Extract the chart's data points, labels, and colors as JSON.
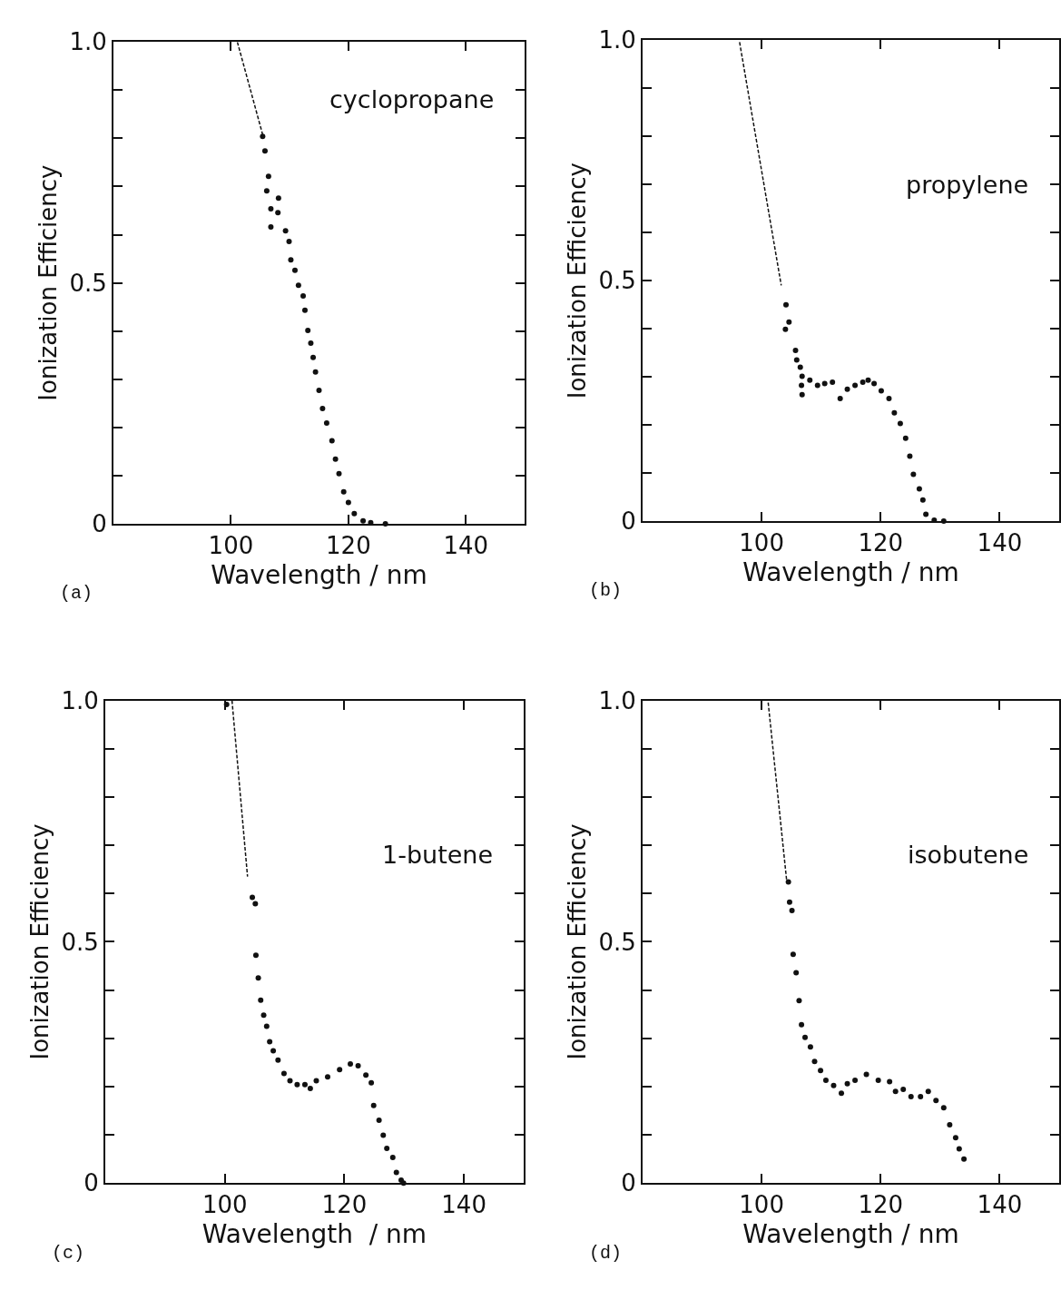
{
  "chart_data": [
    {
      "type": "scatter",
      "xlabel": "Wavelength / nm",
      "ylabel": "Ionization Efficiency",
      "annotations": [
        "cyclopropane",
        "(a)"
      ],
      "xlim": [
        80,
        150
      ],
      "xticks": [
        100,
        120,
        140
      ],
      "ylim": [
        0,
        1.0
      ],
      "yticks": [
        0,
        {
          "value": 0.1,
          "label": null
        },
        {
          "value": 0.2,
          "label": null
        },
        {
          "value": 0.3,
          "label": null
        },
        {
          "value": 0.4,
          "label": null
        },
        0.5,
        {
          "value": 0.6,
          "label": null
        },
        {
          "value": 0.7,
          "label": null
        },
        {
          "value": 0.8,
          "label": null
        },
        {
          "value": 0.9,
          "label": null
        },
        {
          "value": 1.0,
          "label": "1.0"
        }
      ],
      "series": [
        {
          "type": "line",
          "line_style": "dashed",
          "color": "#111111",
          "x": [
            101.1,
            105.4
          ],
          "values": [
            1.0,
            0.808
          ]
        },
        {
          "marker": "circle",
          "color": "#111111",
          "x": [
            105.4,
            105.8,
            106.1,
            106.4,
            106.8,
            106.8,
            108.0,
            108.1,
            109.3,
            109.9,
            110.2,
            110.9,
            111.5,
            112.3,
            112.6,
            113.1,
            113.6,
            114.0,
            114.4,
            115.0,
            115.6,
            116.3,
            117.2,
            117.8,
            118.4,
            119.2,
            120.0,
            121.0,
            122.5,
            123.8,
            126.3
          ],
          "values": [
            0.804,
            0.774,
            0.691,
            0.721,
            0.654,
            0.616,
            0.646,
            0.676,
            0.608,
            0.586,
            0.548,
            0.526,
            0.495,
            0.473,
            0.443,
            0.401,
            0.375,
            0.345,
            0.315,
            0.277,
            0.239,
            0.209,
            0.172,
            0.134,
            0.104,
            0.066,
            0.044,
            0.021,
            0.006,
            0.002,
            0.0
          ]
        }
      ]
    },
    {
      "type": "scatter",
      "xlabel": "Wavelength / nm",
      "ylabel": "Ionization Efficiency",
      "annotations": [
        "propylene",
        "(b)"
      ],
      "xlim": [
        80,
        150
      ],
      "xticks": [
        100,
        120,
        140
      ],
      "ylim": [
        0,
        1.0
      ],
      "yticks": [
        0,
        {
          "value": 0.1,
          "label": null
        },
        {
          "value": 0.2,
          "label": null
        },
        {
          "value": 0.3,
          "label": null
        },
        {
          "value": 0.4,
          "label": null
        },
        0.5,
        {
          "value": 0.6,
          "label": null
        },
        {
          "value": 0.7,
          "label": null
        },
        {
          "value": 0.8,
          "label": null
        },
        {
          "value": 0.9,
          "label": null
        },
        {
          "value": 1.0,
          "label": "1.0"
        }
      ],
      "series": [
        {
          "type": "line",
          "line_style": "dashed",
          "color": "#111111",
          "x": [
            96.3,
            103.3
          ],
          "values": [
            0.996,
            0.49
          ]
        },
        {
          "marker": "circle",
          "color": "#111111",
          "x": [
            104.0,
            104.1,
            104.6,
            105.7,
            105.9,
            106.5,
            106.7,
            106.8,
            106.8,
            108.1,
            109.4,
            110.6,
            111.9,
            113.2,
            114.4,
            115.7,
            117.0,
            117.9,
            118.9,
            120.1,
            121.4,
            122.3,
            123.3,
            124.2,
            124.9,
            125.5,
            126.5,
            127.1,
            127.6,
            129.0,
            130.6
          ],
          "values": [
            0.399,
            0.45,
            0.414,
            0.355,
            0.335,
            0.32,
            0.282,
            0.301,
            0.263,
            0.293,
            0.282,
            0.286,
            0.289,
            0.255,
            0.274,
            0.282,
            0.289,
            0.293,
            0.286,
            0.271,
            0.255,
            0.225,
            0.203,
            0.172,
            0.135,
            0.097,
            0.067,
            0.044,
            0.014,
            0.002,
            0.0
          ]
        }
      ]
    },
    {
      "type": "scatter",
      "xlabel": "Wavelength  / nm",
      "ylabel": "Ionization Efficiency",
      "annotations": [
        "1-butene",
        "(c)"
      ],
      "xlim": [
        80,
        150
      ],
      "xticks": [
        100,
        120,
        140
      ],
      "ylim": [
        0,
        1.0
      ],
      "yticks": [
        0,
        {
          "value": 0.1,
          "label": null
        },
        {
          "value": 0.2,
          "label": null
        },
        {
          "value": 0.3,
          "label": null
        },
        {
          "value": 0.4,
          "label": null
        },
        0.5,
        {
          "value": 0.6,
          "label": null
        },
        {
          "value": 0.7,
          "label": null
        },
        {
          "value": 0.8,
          "label": null
        },
        {
          "value": 0.9,
          "label": null
        },
        {
          "value": 1.0,
          "label": "1.0"
        }
      ],
      "series": [
        {
          "type": "line",
          "line_style": "dashed",
          "color": "#111111",
          "x": [
            101.2,
            103.8
          ],
          "values": [
            1.0,
            0.635
          ]
        },
        {
          "marker": "circle",
          "color": "#111111",
          "x": [
            100.3,
            104.6,
            105.1,
            105.2,
            105.6,
            106.0,
            106.5,
            107.0,
            107.5,
            108.1,
            108.9,
            109.9,
            110.9,
            112.1,
            113.4,
            114.3,
            115.3,
            117.2,
            119.2,
            121.0,
            122.3,
            123.6,
            124.5,
            124.9,
            125.8,
            126.5,
            127.1,
            128.1,
            128.7,
            129.5,
            129.9
          ],
          "values": [
            0.992,
            0.592,
            0.579,
            0.472,
            0.425,
            0.379,
            0.348,
            0.325,
            0.293,
            0.274,
            0.255,
            0.227,
            0.212,
            0.204,
            0.204,
            0.196,
            0.212,
            0.22,
            0.235,
            0.247,
            0.243,
            0.224,
            0.208,
            0.161,
            0.13,
            0.099,
            0.072,
            0.053,
            0.022,
            0.006,
            0.0
          ]
        }
      ]
    },
    {
      "type": "scatter",
      "xlabel": "Wavelength / nm",
      "ylabel": "Ionization Efficiency",
      "annotations": [
        "isobutene",
        "(d)"
      ],
      "xlim": [
        80,
        150
      ],
      "xticks": [
        100,
        120,
        140
      ],
      "ylim": [
        0,
        1.0
      ],
      "yticks": [
        0,
        {
          "value": 0.1,
          "label": null
        },
        {
          "value": 0.2,
          "label": null
        },
        {
          "value": 0.3,
          "label": null
        },
        {
          "value": 0.4,
          "label": null
        },
        0.5,
        {
          "value": 0.6,
          "label": null
        },
        {
          "value": 0.7,
          "label": null
        },
        {
          "value": 0.8,
          "label": null
        },
        {
          "value": 0.9,
          "label": null
        },
        {
          "value": 1.0,
          "label": "1.0"
        }
      ],
      "series": [
        {
          "type": "line",
          "line_style": "dashed",
          "color": "#111111",
          "x": [
            101.1,
            104.2
          ],
          "values": [
            0.996,
            0.628
          ]
        },
        {
          "marker": "circle",
          "color": "#111111",
          "x": [
            104.5,
            104.7,
            105.1,
            105.3,
            105.8,
            106.3,
            106.7,
            107.3,
            108.2,
            108.9,
            109.9,
            110.8,
            112.1,
            113.4,
            114.4,
            115.7,
            117.6,
            119.6,
            121.5,
            122.5,
            123.8,
            125.1,
            126.7,
            128.0,
            129.3,
            130.6,
            131.6,
            132.6,
            133.2,
            134.0
          ],
          "values": [
            0.624,
            0.582,
            0.565,
            0.474,
            0.436,
            0.378,
            0.328,
            0.302,
            0.282,
            0.252,
            0.233,
            0.213,
            0.202,
            0.186,
            0.206,
            0.213,
            0.225,
            0.213,
            0.21,
            0.19,
            0.194,
            0.179,
            0.179,
            0.19,
            0.171,
            0.156,
            0.121,
            0.094,
            0.071,
            0.05
          ]
        }
      ]
    }
  ]
}
